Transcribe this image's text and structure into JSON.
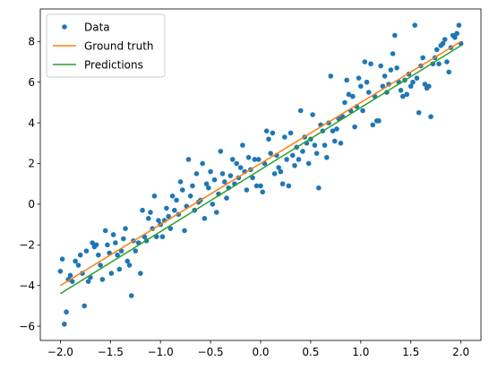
{
  "chart_data": {
    "type": "scatter",
    "title": "",
    "xlabel": "",
    "ylabel": "",
    "xlim": [
      -2.2,
      2.2
    ],
    "ylim": [
      -6.7,
      9.6
    ],
    "xticks": [
      -2.0,
      -1.5,
      -1.0,
      -0.5,
      0.0,
      0.5,
      1.0,
      1.5,
      2.0
    ],
    "xtick_labels": [
      "−2.0",
      "−1.5",
      "−1.0",
      "−0.5",
      "0.0",
      "0.5",
      "1.0",
      "1.5",
      "2.0"
    ],
    "yticks": [
      -6,
      -4,
      -2,
      0,
      2,
      4,
      6,
      8
    ],
    "ytick_labels": [
      "−6",
      "−4",
      "−2",
      "0",
      "2",
      "4",
      "6",
      "8"
    ],
    "grid": false,
    "legend": {
      "position": "upper-left",
      "entries": [
        "Data",
        "Ground truth",
        "Predictions"
      ]
    },
    "series": [
      {
        "name": "Data",
        "kind": "scatter",
        "color": "#1f77b4",
        "points": [
          [
            -2.0,
            -3.3
          ],
          [
            -1.98,
            -2.7
          ],
          [
            -1.96,
            -5.9
          ],
          [
            -1.94,
            -5.3
          ],
          [
            -1.92,
            -3.7
          ],
          [
            -1.9,
            -3.5
          ],
          [
            -1.88,
            -3.8
          ],
          [
            -1.85,
            -2.8
          ],
          [
            -1.82,
            -3.0
          ],
          [
            -1.8,
            -2.5
          ],
          [
            -1.78,
            -3.4
          ],
          [
            -1.76,
            -5.0
          ],
          [
            -1.74,
            -2.3
          ],
          [
            -1.72,
            -3.8
          ],
          [
            -1.7,
            -3.6
          ],
          [
            -1.68,
            -1.9
          ],
          [
            -1.66,
            -2.1
          ],
          [
            -1.64,
            -2.0
          ],
          [
            -1.62,
            -2.5
          ],
          [
            -1.6,
            -3.0
          ],
          [
            -1.58,
            -3.7
          ],
          [
            -1.55,
            -1.3
          ],
          [
            -1.53,
            -2.0
          ],
          [
            -1.51,
            -2.4
          ],
          [
            -1.49,
            -3.4
          ],
          [
            -1.47,
            -1.5
          ],
          [
            -1.45,
            -1.9
          ],
          [
            -1.43,
            -2.5
          ],
          [
            -1.41,
            -3.2
          ],
          [
            -1.39,
            -2.3
          ],
          [
            -1.37,
            -1.7
          ],
          [
            -1.35,
            -1.2
          ],
          [
            -1.33,
            -2.8
          ],
          [
            -1.31,
            -3.0
          ],
          [
            -1.29,
            -4.5
          ],
          [
            -1.27,
            -1.8
          ],
          [
            -1.25,
            -2.3
          ],
          [
            -1.22,
            -1.9
          ],
          [
            -1.2,
            -3.4
          ],
          [
            -1.18,
            -0.3
          ],
          [
            -1.16,
            -1.6
          ],
          [
            -1.14,
            -1.8
          ],
          [
            -1.12,
            -0.7
          ],
          [
            -1.1,
            -0.4
          ],
          [
            -1.08,
            -1.2
          ],
          [
            -1.06,
            0.4
          ],
          [
            -1.04,
            -1.6
          ],
          [
            -1.02,
            -0.8
          ],
          [
            -1.0,
            -1.0
          ],
          [
            -0.98,
            -1.6
          ],
          [
            -0.96,
            -0.8
          ],
          [
            -0.94,
            -0.2
          ],
          [
            -0.92,
            -0.6
          ],
          [
            -0.9,
            -1.2
          ],
          [
            -0.88,
            0.4
          ],
          [
            -0.86,
            -0.3
          ],
          [
            -0.84,
            0.2
          ],
          [
            -0.82,
            -0.5
          ],
          [
            -0.8,
            1.1
          ],
          [
            -0.78,
            0.7
          ],
          [
            -0.76,
            -1.3
          ],
          [
            -0.74,
            -0.1
          ],
          [
            -0.72,
            2.2
          ],
          [
            -0.7,
            0.4
          ],
          [
            -0.68,
            0.9
          ],
          [
            -0.66,
            -0.3
          ],
          [
            -0.64,
            1.5
          ],
          [
            -0.62,
            0.1
          ],
          [
            -0.6,
            0.2
          ],
          [
            -0.58,
            2.0
          ],
          [
            -0.56,
            -0.7
          ],
          [
            -0.54,
            1.0
          ],
          [
            -0.52,
            0.8
          ],
          [
            -0.5,
            1.6
          ],
          [
            -0.48,
            0.0
          ],
          [
            -0.46,
            1.2
          ],
          [
            -0.44,
            -0.4
          ],
          [
            -0.42,
            0.5
          ],
          [
            -0.4,
            2.6
          ],
          [
            -0.38,
            1.5
          ],
          [
            -0.36,
            1.1
          ],
          [
            -0.34,
            0.3
          ],
          [
            -0.32,
            0.8
          ],
          [
            -0.3,
            1.4
          ],
          [
            -0.28,
            2.2
          ],
          [
            -0.26,
            1.0
          ],
          [
            -0.24,
            2.0
          ],
          [
            -0.22,
            1.3
          ],
          [
            -0.2,
            1.8
          ],
          [
            -0.18,
            2.9
          ],
          [
            -0.16,
            1.6
          ],
          [
            -0.14,
            0.7
          ],
          [
            -0.12,
            2.3
          ],
          [
            -0.1,
            1.7
          ],
          [
            -0.08,
            1.3
          ],
          [
            -0.06,
            2.2
          ],
          [
            -0.04,
            0.9
          ],
          [
            -0.02,
            2.2
          ],
          [
            0.0,
            0.9
          ],
          [
            0.02,
            0.6
          ],
          [
            0.04,
            2.0
          ],
          [
            0.06,
            3.6
          ],
          [
            0.08,
            3.2
          ],
          [
            0.1,
            2.5
          ],
          [
            0.12,
            3.5
          ],
          [
            0.14,
            1.5
          ],
          [
            0.16,
            2.4
          ],
          [
            0.18,
            1.8
          ],
          [
            0.2,
            1.6
          ],
          [
            0.22,
            1.0
          ],
          [
            0.24,
            3.3
          ],
          [
            0.26,
            2.2
          ],
          [
            0.28,
            0.9
          ],
          [
            0.3,
            3.5
          ],
          [
            0.32,
            2.4
          ],
          [
            0.34,
            1.9
          ],
          [
            0.36,
            2.8
          ],
          [
            0.38,
            2.2
          ],
          [
            0.4,
            4.6
          ],
          [
            0.42,
            2.6
          ],
          [
            0.44,
            3.3
          ],
          [
            0.46,
            3.0
          ],
          [
            0.48,
            2.0
          ],
          [
            0.5,
            3.2
          ],
          [
            0.52,
            4.4
          ],
          [
            0.54,
            2.9
          ],
          [
            0.56,
            2.5
          ],
          [
            0.58,
            0.8
          ],
          [
            0.6,
            3.9
          ],
          [
            0.62,
            3.6
          ],
          [
            0.64,
            2.9
          ],
          [
            0.66,
            2.3
          ],
          [
            0.68,
            4.0
          ],
          [
            0.7,
            6.3
          ],
          [
            0.72,
            3.6
          ],
          [
            0.74,
            3.1
          ],
          [
            0.76,
            3.7
          ],
          [
            0.78,
            4.2
          ],
          [
            0.8,
            3.0
          ],
          [
            0.82,
            4.3
          ],
          [
            0.84,
            5.0
          ],
          [
            0.86,
            6.1
          ],
          [
            0.88,
            5.4
          ],
          [
            0.9,
            4.6
          ],
          [
            0.92,
            5.3
          ],
          [
            0.94,
            3.8
          ],
          [
            0.96,
            4.8
          ],
          [
            0.98,
            6.2
          ],
          [
            1.0,
            5.8
          ],
          [
            1.02,
            4.6
          ],
          [
            1.04,
            7.0
          ],
          [
            1.06,
            6.0
          ],
          [
            1.08,
            5.5
          ],
          [
            1.1,
            6.9
          ],
          [
            1.12,
            3.9
          ],
          [
            1.14,
            5.3
          ],
          [
            1.16,
            4.1
          ],
          [
            1.18,
            4.1
          ],
          [
            1.2,
            6.8
          ],
          [
            1.22,
            5.8
          ],
          [
            1.24,
            6.3
          ],
          [
            1.26,
            5.5
          ],
          [
            1.28,
            5.9
          ],
          [
            1.3,
            6.6
          ],
          [
            1.32,
            7.4
          ],
          [
            1.34,
            8.3
          ],
          [
            1.36,
            6.7
          ],
          [
            1.38,
            6.0
          ],
          [
            1.4,
            5.6
          ],
          [
            1.42,
            5.3
          ],
          [
            1.44,
            6.1
          ],
          [
            1.46,
            5.4
          ],
          [
            1.48,
            6.4
          ],
          [
            1.5,
            5.8
          ],
          [
            1.52,
            6.0
          ],
          [
            1.54,
            8.8
          ],
          [
            1.56,
            6.2
          ],
          [
            1.58,
            4.5
          ],
          [
            1.6,
            6.8
          ],
          [
            1.62,
            7.2
          ],
          [
            1.64,
            5.9
          ],
          [
            1.66,
            5.7
          ],
          [
            1.68,
            5.8
          ],
          [
            1.7,
            4.3
          ],
          [
            1.72,
            6.9
          ],
          [
            1.74,
            7.2
          ],
          [
            1.76,
            7.6
          ],
          [
            1.78,
            6.9
          ],
          [
            1.8,
            7.8
          ],
          [
            1.82,
            7.9
          ],
          [
            1.84,
            8.1
          ],
          [
            1.86,
            7.0
          ],
          [
            1.88,
            6.5
          ],
          [
            1.9,
            7.7
          ],
          [
            1.92,
            8.3
          ],
          [
            1.94,
            8.2
          ],
          [
            1.96,
            8.4
          ],
          [
            1.98,
            8.8
          ],
          [
            2.0,
            7.9
          ]
        ]
      },
      {
        "name": "Ground truth",
        "kind": "line",
        "color": "#ff7f0e",
        "x": [
          -2.0,
          2.0
        ],
        "y": [
          -4.0,
          8.0
        ]
      },
      {
        "name": "Predictions",
        "kind": "line",
        "color": "#2ca02c",
        "x": [
          -2.0,
          2.0
        ],
        "y": [
          -4.4,
          7.8
        ]
      }
    ]
  }
}
